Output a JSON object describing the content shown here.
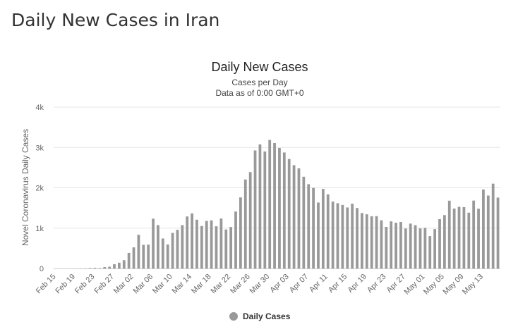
{
  "page": {
    "heading": "Daily New Cases in Iran"
  },
  "chart_data": {
    "type": "bar",
    "title": "Daily New Cases",
    "subtitle_lines": [
      "Cases per Day",
      "Data as of 0:00 GMT+0"
    ],
    "xlabel": "",
    "ylabel": "Novel Coronavirus Daily Cases",
    "ylim": [
      0,
      4000
    ],
    "yticks": [
      0,
      1000,
      2000,
      3000,
      4000
    ],
    "ytick_labels": [
      "0",
      "1k",
      "2k",
      "3k",
      "4k"
    ],
    "x_tick_labels": [
      "Feb 15",
      "Feb 19",
      "Feb 23",
      "Feb 27",
      "Mar 02",
      "Mar 06",
      "Mar 10",
      "Mar 14",
      "Mar 18",
      "Mar 22",
      "Mar 26",
      "Mar 30",
      "Apr 03",
      "Apr 07",
      "Apr 11",
      "Apr 15",
      "Apr 19",
      "Apr 23",
      "Apr 27",
      "May 01",
      "May 05",
      "May 09",
      "May 13"
    ],
    "grid": true,
    "legend_position": "bottom-center",
    "colors": {
      "bars": "#999999",
      "grid": "#e6e6e6"
    },
    "categories": [
      "Feb 15",
      "Feb 16",
      "Feb 17",
      "Feb 18",
      "Feb 19",
      "Feb 20",
      "Feb 21",
      "Feb 22",
      "Feb 23",
      "Feb 24",
      "Feb 25",
      "Feb 26",
      "Feb 27",
      "Feb 28",
      "Feb 29",
      "Mar 01",
      "Mar 02",
      "Mar 03",
      "Mar 04",
      "Mar 05",
      "Mar 06",
      "Mar 07",
      "Mar 08",
      "Mar 09",
      "Mar 10",
      "Mar 11",
      "Mar 12",
      "Mar 13",
      "Mar 14",
      "Mar 15",
      "Mar 16",
      "Mar 17",
      "Mar 18",
      "Mar 19",
      "Mar 20",
      "Mar 21",
      "Mar 22",
      "Mar 23",
      "Mar 24",
      "Mar 25",
      "Mar 26",
      "Mar 27",
      "Mar 28",
      "Mar 29",
      "Mar 30",
      "Mar 31",
      "Apr 01",
      "Apr 02",
      "Apr 03",
      "Apr 04",
      "Apr 05",
      "Apr 06",
      "Apr 07",
      "Apr 08",
      "Apr 09",
      "Apr 10",
      "Apr 11",
      "Apr 12",
      "Apr 13",
      "Apr 14",
      "Apr 15",
      "Apr 16",
      "Apr 17",
      "Apr 18",
      "Apr 19",
      "Apr 20",
      "Apr 21",
      "Apr 22",
      "Apr 23",
      "Apr 24",
      "Apr 25",
      "Apr 26",
      "Apr 27",
      "Apr 28",
      "Apr 29",
      "Apr 30",
      "May 01",
      "May 02",
      "May 03",
      "May 04",
      "May 05",
      "May 06",
      "May 07",
      "May 08",
      "May 09",
      "May 10",
      "May 11",
      "May 12",
      "May 13",
      "May 14",
      "May 15",
      "May 16"
    ],
    "series": [
      {
        "name": "Daily Cases",
        "values": [
          0,
          0,
          0,
          0,
          0,
          2,
          3,
          10,
          15,
          8,
          34,
          44,
          106,
          143,
          205,
          385,
          523,
          835,
          586,
          591,
          1234,
          1076,
          743,
          595,
          881,
          958,
          1075,
          1289,
          1365,
          1209,
          1053,
          1178,
          1192,
          1046,
          1237,
          966,
          1028,
          1411,
          1762,
          2206,
          2389,
          2926,
          3076,
          2901,
          3186,
          3110,
          2987,
          2875,
          2715,
          2560,
          2483,
          2274,
          2089,
          1997,
          1634,
          1972,
          1837,
          1657,
          1617,
          1574,
          1512,
          1606,
          1499,
          1374,
          1343,
          1294,
          1297,
          1194,
          1030,
          1168,
          1134,
          1153,
          991,
          1112,
          1073,
          993,
          1006,
          802,
          976,
          1223,
          1323,
          1680,
          1485,
          1529,
          1521,
          1383,
          1683,
          1481,
          1958,
          1808,
          2102,
          1757
        ]
      }
    ]
  }
}
